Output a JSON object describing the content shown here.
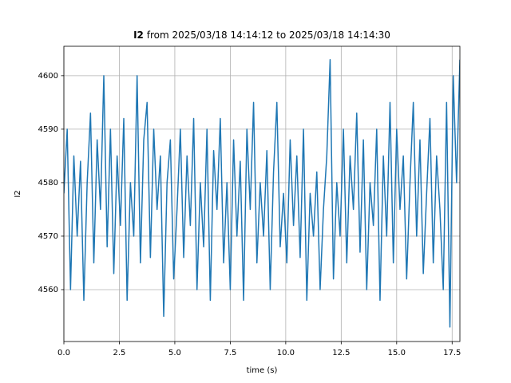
{
  "chart_data": {
    "type": "line",
    "title_variable": "I2",
    "title": "from 2025/03/18 14:14:12 to 2025/03/18 14:14:30",
    "xlabel": "time (s)",
    "ylabel": "I2",
    "xlim": [
      0,
      17.85
    ],
    "ylim": [
      4550.3,
      4605.5
    ],
    "xticks": [
      {
        "value": 0,
        "label": "0.0"
      },
      2.5,
      {
        "value": 5,
        "label": "5.0"
      },
      7.5,
      {
        "value": 10,
        "label": "10.0"
      },
      12.5,
      {
        "value": 15,
        "label": "15.0"
      },
      17.5
    ],
    "yticks": [
      4560,
      4570,
      4580,
      4590,
      4600
    ],
    "grid": true,
    "series": [
      {
        "color": "#1f77b4",
        "x": [
          0.0,
          0.15,
          0.3,
          0.45,
          0.6,
          0.75,
          0.9,
          1.05,
          1.2,
          1.35,
          1.5,
          1.65,
          1.8,
          1.95,
          2.1,
          2.25,
          2.4,
          2.55,
          2.7,
          2.85,
          3.0,
          3.15,
          3.3,
          3.45,
          3.6,
          3.75,
          3.9,
          4.05,
          4.2,
          4.35,
          4.5,
          4.65,
          4.8,
          4.95,
          5.1,
          5.25,
          5.4,
          5.55,
          5.7,
          5.85,
          6.0,
          6.15,
          6.3,
          6.45,
          6.6,
          6.75,
          6.9,
          7.05,
          7.2,
          7.35,
          7.5,
          7.65,
          7.8,
          7.95,
          8.1,
          8.25,
          8.4,
          8.55,
          8.7,
          8.85,
          9.0,
          9.15,
          9.3,
          9.45,
          9.6,
          9.75,
          9.9,
          10.05,
          10.2,
          10.35,
          10.5,
          10.65,
          10.8,
          10.95,
          11.1,
          11.25,
          11.4,
          11.55,
          11.7,
          11.85,
          12.0,
          12.15,
          12.3,
          12.45,
          12.6,
          12.75,
          12.9,
          13.05,
          13.2,
          13.35,
          13.5,
          13.65,
          13.8,
          13.95,
          14.1,
          14.25,
          14.4,
          14.55,
          14.7,
          14.85,
          15.0,
          15.15,
          15.3,
          15.45,
          15.6,
          15.75,
          15.9,
          16.05,
          16.2,
          16.35,
          16.5,
          16.65,
          16.8,
          16.95,
          17.1,
          17.25,
          17.4,
          17.55,
          17.7,
          17.85
        ],
        "values": [
          4578,
          4590,
          4560,
          4585,
          4570,
          4584,
          4558,
          4580,
          4593,
          4565,
          4588,
          4575,
          4600,
          4568,
          4590,
          4563,
          4585,
          4572,
          4592,
          4558,
          4580,
          4570,
          4600,
          4565,
          4588,
          4595,
          4566,
          4590,
          4575,
          4585,
          4555,
          4580,
          4588,
          4562,
          4575,
          4590,
          4566,
          4585,
          4572,
          4592,
          4560,
          4580,
          4568,
          4590,
          4558,
          4586,
          4575,
          4592,
          4565,
          4580,
          4560,
          4588,
          4570,
          4584,
          4558,
          4590,
          4575,
          4595,
          4565,
          4580,
          4570,
          4586,
          4560,
          4582,
          4595,
          4568,
          4578,
          4565,
          4588,
          4572,
          4585,
          4566,
          4590,
          4558,
          4578,
          4570,
          4582,
          4560,
          4575,
          4585,
          4603,
          4562,
          4580,
          4570,
          4590,
          4565,
          4585,
          4575,
          4593,
          4567,
          4588,
          4560,
          4580,
          4572,
          4590,
          4558,
          4585,
          4570,
          4595,
          4565,
          4590,
          4575,
          4585,
          4562,
          4580,
          4595,
          4570,
          4588,
          4563,
          4578,
          4592,
          4565,
          4585,
          4575,
          4560,
          4595,
          4553,
          4600,
          4580,
          4603
        ]
      }
    ]
  }
}
